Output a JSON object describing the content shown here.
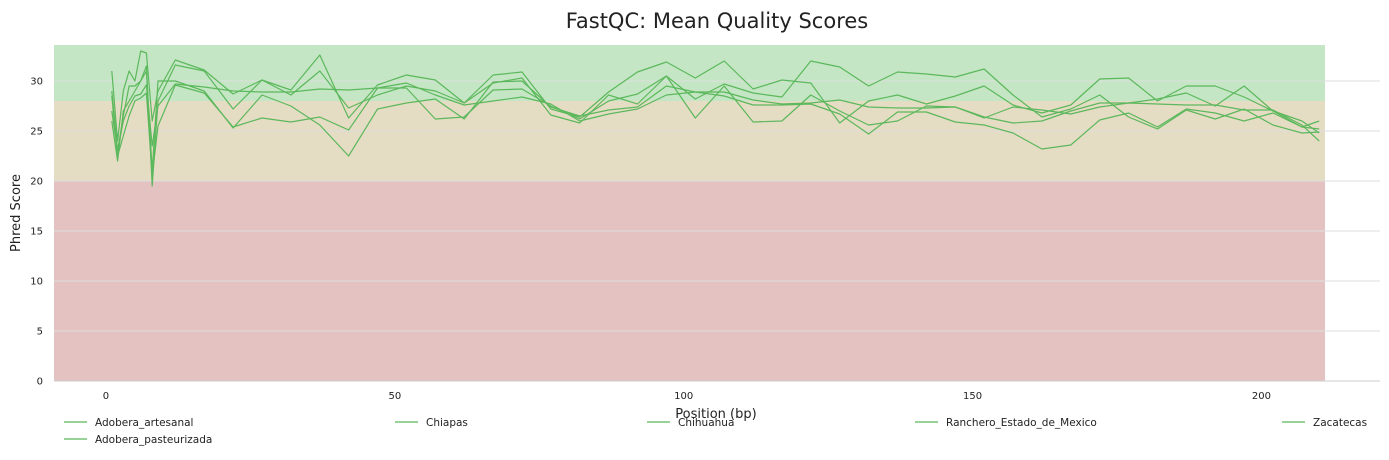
{
  "chart_data": {
    "type": "line",
    "title": "FastQC: Mean Quality Scores",
    "xlabel": "Position (bp)",
    "ylabel": "Phred Score",
    "xlim": [
      -9,
      211
    ],
    "ylim": [
      0,
      33.6
    ],
    "x_ticks": [
      0,
      50,
      100,
      150,
      200
    ],
    "y_ticks": [
      0,
      5,
      10,
      15,
      20,
      25,
      30
    ],
    "grid": "horizontal",
    "legend_position": "bottom",
    "line_color": "#5cb85c",
    "zones": [
      {
        "from": 0,
        "to": 20,
        "color": "#e4c2c2"
      },
      {
        "from": 20,
        "to": 28,
        "color": "#e5dcc4"
      },
      {
        "from": 28,
        "to": 33.6,
        "color": "#c4e6c4"
      }
    ],
    "x": [
      1,
      2,
      3,
      4,
      5,
      6,
      7,
      8,
      9,
      12,
      17,
      22,
      27,
      32,
      37,
      42,
      47,
      52,
      57,
      62,
      67,
      72,
      77,
      82,
      87,
      92,
      97,
      102,
      107,
      112,
      117,
      122,
      127,
      132,
      137,
      142,
      147,
      152,
      157,
      162,
      167,
      172,
      177,
      182,
      187,
      192,
      197,
      202,
      207,
      210
    ],
    "series": [
      {
        "name": "Adobera_artesanal",
        "values": [
          31.0,
          24.0,
          29.0,
          31.0,
          30.0,
          33.0,
          32.8,
          26.0,
          29.0,
          32.1,
          31.1,
          28.7,
          30.1,
          29.1,
          32.6,
          26.3,
          29.6,
          30.6,
          30.1,
          27.8,
          30.6,
          30.9,
          27.2,
          26.4,
          28.9,
          30.9,
          31.9,
          30.3,
          32.0,
          29.2,
          30.1,
          29.8,
          25.8,
          28.0,
          28.6,
          27.7,
          28.5,
          29.5,
          27.6,
          26.8,
          27.6,
          30.2,
          30.3,
          28.0,
          29.5,
          29.5,
          28.4,
          27.0,
          25.4,
          25.2
        ]
      },
      {
        "name": "Adobera_pasteurizada",
        "values": [
          26.0,
          22.0,
          27.0,
          28.0,
          29.0,
          30.0,
          31.5,
          19.5,
          28.0,
          31.6,
          31.0,
          27.2,
          30.1,
          28.6,
          31.0,
          27.3,
          28.6,
          29.5,
          29.0,
          27.8,
          29.8,
          30.3,
          26.6,
          25.8,
          28.6,
          27.7,
          30.5,
          28.2,
          29.7,
          28.8,
          28.4,
          32.0,
          31.4,
          29.5,
          30.9,
          30.7,
          30.4,
          31.2,
          28.6,
          26.4,
          27.2,
          28.6,
          26.4,
          25.2,
          27.1,
          26.2,
          27.2,
          25.6,
          24.8,
          24.9
        ]
      },
      {
        "name": "Chiapas",
        "values": [
          29.0,
          23.0,
          26.5,
          29.5,
          29.5,
          30.0,
          31.0,
          21.0,
          30.0,
          30.0,
          29.0,
          25.3,
          28.6,
          27.5,
          25.6,
          22.5,
          27.2,
          27.8,
          28.2,
          26.2,
          29.9,
          30.0,
          27.4,
          26.5,
          27.1,
          27.4,
          29.5,
          28.9,
          28.5,
          27.6,
          27.6,
          27.7,
          26.7,
          24.7,
          26.9,
          26.9,
          25.9,
          25.6,
          24.8,
          23.2,
          23.6,
          26.1,
          26.8,
          25.4,
          27.2,
          26.8,
          26.0,
          26.8,
          25.4,
          26.0
        ]
      },
      {
        "name": "Ranchero_Estado_de_Mexico",
        "values": [
          28.5,
          22.5,
          24.5,
          26.5,
          28.0,
          28.3,
          28.8,
          20.5,
          25.5,
          29.6,
          28.8,
          25.4,
          26.3,
          25.9,
          26.4,
          25.1,
          29.3,
          29.3,
          26.2,
          26.4,
          29.1,
          29.2,
          27.5,
          26.2,
          28.0,
          28.7,
          30.5,
          26.3,
          29.5,
          25.9,
          26.0,
          28.6,
          27.0,
          25.6,
          26.0,
          27.5,
          27.4,
          26.4,
          25.8,
          26.0,
          27.0,
          27.8,
          27.8,
          28.2,
          28.8,
          27.5,
          29.5,
          27.0,
          26.0,
          24.8
        ]
      },
      {
        "name": "Zacatecas",
        "values": [
          27.0,
          23.0,
          26.0,
          27.5,
          28.5,
          28.7,
          29.6,
          23.5,
          27.5,
          29.7,
          29.4,
          29.0,
          28.9,
          28.9,
          29.2,
          29.1,
          29.3,
          29.8,
          28.6,
          27.6,
          28.0,
          28.4,
          27.7,
          26.0,
          26.7,
          27.2,
          28.6,
          28.9,
          28.9,
          28.1,
          27.7,
          27.8,
          28.1,
          27.4,
          27.3,
          27.3,
          27.4,
          26.3,
          27.4,
          27.1,
          26.7,
          27.4,
          27.8,
          27.7,
          27.6,
          27.6,
          27.1,
          27.1,
          25.6,
          24.0
        ]
      }
    ]
  }
}
